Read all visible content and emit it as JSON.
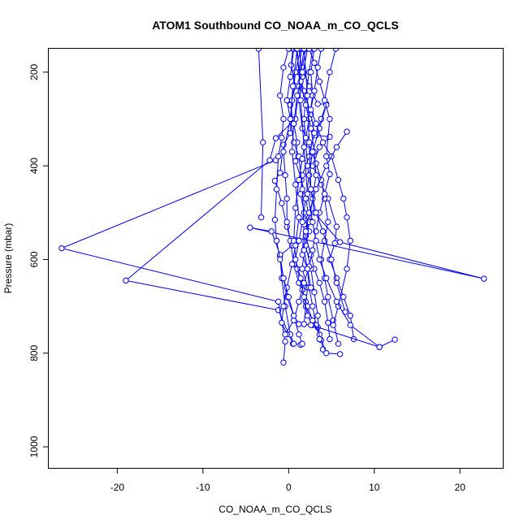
{
  "chart_data": {
    "type": "scatter",
    "title": "ATOM1 Southbound CO_NOAA_m_CO_QCLS",
    "xlabel": "CO_NOAA_m_CO_QCLS",
    "ylabel": "Pressure (mbar)",
    "xlim": [
      -28,
      25
    ],
    "ylim": [
      1045,
      150
    ],
    "y_reversed": true,
    "xticks": [
      -20,
      -10,
      0,
      10,
      20
    ],
    "yticks": [
      200,
      400,
      600,
      800,
      1000
    ],
    "grid": false,
    "legend": "none",
    "color": "#0000ff",
    "marker": "open-circle",
    "connected": true,
    "profiles": [
      [
        [
          0.5,
          150
        ],
        [
          0.3,
          185
        ],
        [
          0.8,
          230
        ],
        [
          0.2,
          270
        ],
        [
          0.6,
          310
        ],
        [
          1.0,
          350
        ],
        [
          0.8,
          390
        ],
        [
          1.5,
          430
        ],
        [
          2.0,
          470
        ],
        [
          2.4,
          510
        ],
        [
          2.0,
          550
        ],
        [
          2.6,
          590
        ],
        [
          3.0,
          620
        ],
        [
          3.6,
          650
        ],
        [
          4.2,
          690
        ],
        [
          4.6,
          735
        ],
        [
          4.8,
          770
        ]
      ],
      [
        [
          2.0,
          150
        ],
        [
          1.6,
          190
        ],
        [
          2.4,
          230
        ],
        [
          3.4,
          268
        ],
        [
          4.4,
          268
        ],
        [
          3.8,
          300
        ],
        [
          3.2,
          335
        ],
        [
          4.8,
          338
        ],
        [
          3.6,
          360
        ],
        [
          2.8,
          400
        ],
        [
          3.8,
          440
        ],
        [
          4.6,
          470
        ],
        [
          5.6,
          530
        ],
        [
          5.4,
          565
        ],
        [
          4.8,
          600
        ],
        [
          5.6,
          640
        ],
        [
          6.4,
          680
        ],
        [
          7.2,
          720
        ],
        [
          7.6,
          770
        ]
      ],
      [
        [
          1.5,
          150
        ],
        [
          1.2,
          200
        ],
        [
          1.8,
          240
        ],
        [
          2.6,
          290
        ],
        [
          3.0,
          330
        ],
        [
          2.4,
          380
        ],
        [
          1.6,
          420
        ],
        [
          1.4,
          460
        ],
        [
          1.8,
          500
        ],
        [
          2.4,
          540
        ],
        [
          1.8,
          580
        ],
        [
          1.6,
          620
        ],
        [
          2.2,
          660
        ],
        [
          2.0,
          700
        ],
        [
          1.8,
          738
        ],
        [
          2.8,
          740
        ],
        [
          3.4,
          745
        ],
        [
          3.8,
          772
        ],
        [
          4.0,
          792
        ]
      ],
      [
        [
          -3.5,
          150
        ],
        [
          -3.0,
          350
        ],
        [
          -3.2,
          510
        ]
      ],
      [
        [
          1.8,
          150
        ],
        [
          1.2,
          230
        ],
        [
          0.8,
          300
        ],
        [
          -1.5,
          341
        ],
        [
          -2.2,
          388
        ],
        [
          -19.0,
          645
        ],
        [
          -1.2,
          708
        ],
        [
          0.5,
          780
        ],
        [
          1.4,
          782
        ]
      ],
      [
        [
          1.4,
          150
        ],
        [
          0.8,
          200
        ],
        [
          0.4,
          260
        ],
        [
          0.2,
          330
        ],
        [
          -0.6,
          355
        ],
        [
          -1.0,
          415
        ],
        [
          -1.6,
          432
        ],
        [
          -0.8,
          480
        ],
        [
          -0.2,
          530
        ],
        [
          0.4,
          570
        ],
        [
          -1.0,
          592
        ],
        [
          -0.6,
          640
        ],
        [
          -0.2,
          680
        ],
        [
          0.6,
          720
        ],
        [
          1.2,
          760
        ],
        [
          1.6,
          780
        ]
      ],
      [
        [
          2.8,
          150
        ],
        [
          2.4,
          200
        ],
        [
          2.0,
          250
        ],
        [
          1.8,
          300
        ],
        [
          2.0,
          350
        ],
        [
          2.2,
          400
        ],
        [
          2.6,
          450
        ],
        [
          3.0,
          500
        ],
        [
          6.0,
          563
        ],
        [
          22.8,
          641
        ],
        [
          -4.5,
          532
        ],
        [
          -2.0,
          540
        ],
        [
          -1.0,
          590
        ],
        [
          -0.8,
          640
        ],
        [
          -0.4,
          700
        ],
        [
          0.2,
          760
        ],
        [
          0.6,
          780
        ]
      ],
      [
        [
          0.6,
          150
        ],
        [
          0.2,
          210
        ],
        [
          -0.2,
          260
        ],
        [
          0.2,
          300
        ],
        [
          0.6,
          350
        ],
        [
          1.2,
          380
        ],
        [
          1.6,
          450
        ],
        [
          1.8,
          525
        ],
        [
          1.6,
          590
        ],
        [
          2.2,
          620
        ],
        [
          2.4,
          660
        ],
        [
          2.8,
          700
        ],
        [
          3.2,
          740
        ],
        [
          4.4,
          800
        ],
        [
          6.0,
          802
        ]
      ],
      [
        [
          1.0,
          150
        ],
        [
          0.5,
          230
        ],
        [
          0.2,
          300
        ],
        [
          -0.6,
          370
        ],
        [
          -0.4,
          420
        ],
        [
          -0.2,
          470
        ],
        [
          -0.2,
          520
        ],
        [
          0.2,
          560
        ],
        [
          0.6,
          610
        ],
        [
          1.2,
          650
        ],
        [
          2.0,
          690
        ],
        [
          2.6,
          740
        ],
        [
          10.6,
          787
        ],
        [
          12.4,
          771
        ]
      ],
      [
        [
          -1.5,
          388
        ],
        [
          -26.5,
          576
        ],
        [
          -1.2,
          690
        ],
        [
          -0.4,
          775
        ],
        [
          -0.6,
          820
        ]
      ],
      [
        [
          2.2,
          150
        ],
        [
          1.6,
          210
        ],
        [
          1.2,
          260
        ],
        [
          1.6,
          320
        ],
        [
          2.4,
          355
        ],
        [
          3.2,
          395
        ],
        [
          3.8,
          430
        ],
        [
          4.2,
          470
        ],
        [
          4.6,
          520
        ],
        [
          4.2,
          560
        ],
        [
          3.8,
          600
        ],
        [
          4.2,
          640
        ],
        [
          4.6,
          680
        ],
        [
          5.2,
          730
        ],
        [
          5.8,
          780
        ]
      ],
      [
        [
          3.0,
          150
        ],
        [
          2.6,
          200
        ],
        [
          2.8,
          250
        ],
        [
          2.4,
          300
        ],
        [
          2.0,
          340
        ],
        [
          1.6,
          385
        ],
        [
          1.2,
          430
        ],
        [
          0.8,
          490
        ],
        [
          0.6,
          560
        ],
        [
          1.0,
          620
        ],
        [
          1.6,
          665
        ],
        [
          2.2,
          700
        ],
        [
          2.8,
          730
        ],
        [
          3.6,
          760
        ]
      ],
      [
        [
          1.2,
          150
        ],
        [
          1.6,
          200
        ],
        [
          1.0,
          250
        ],
        [
          0.6,
          310
        ],
        [
          0.4,
          370
        ],
        [
          0.8,
          440
        ],
        [
          1.2,
          510
        ],
        [
          0.8,
          570
        ],
        [
          0.4,
          610
        ],
        [
          -0.2,
          660
        ],
        [
          -0.6,
          700
        ],
        [
          -0.8,
          735
        ],
        [
          -0.2,
          760
        ]
      ],
      [
        [
          0.9,
          150
        ],
        [
          1.4,
          220
        ],
        [
          2.0,
          270
        ],
        [
          2.6,
          320
        ],
        [
          3.0,
          370
        ],
        [
          3.2,
          420
        ],
        [
          2.8,
          470
        ],
        [
          2.4,
          520
        ],
        [
          2.0,
          570
        ],
        [
          2.6,
          620
        ],
        [
          3.0,
          670
        ],
        [
          3.4,
          720
        ],
        [
          3.6,
          770
        ]
      ],
      [
        [
          2.4,
          150
        ],
        [
          3.0,
          180
        ],
        [
          3.6,
          220
        ],
        [
          4.4,
          270
        ],
        [
          3.6,
          320
        ],
        [
          2.8,
          370
        ],
        [
          2.4,
          420
        ],
        [
          2.0,
          470
        ],
        [
          1.6,
          520
        ],
        [
          1.2,
          560
        ],
        [
          0.8,
          600
        ],
        [
          1.4,
          640
        ],
        [
          1.8,
          680
        ],
        [
          2.2,
          720
        ]
      ],
      [
        [
          5.5,
          150
        ],
        [
          4.8,
          200
        ],
        [
          4.2,
          260
        ],
        [
          4.8,
          300
        ],
        [
          4.4,
          380
        ],
        [
          4.8,
          418
        ],
        [
          4.2,
          460
        ],
        [
          3.6,
          500
        ],
        [
          3.2,
          540
        ],
        [
          2.8,
          580
        ],
        [
          2.4,
          615
        ],
        [
          1.8,
          650
        ],
        [
          1.2,
          690
        ],
        [
          0.6,
          730
        ],
        [
          -0.4,
          760
        ]
      ],
      [
        [
          0.0,
          150
        ],
        [
          -0.6,
          190
        ],
        [
          -1.0,
          250
        ],
        [
          -0.6,
          300
        ],
        [
          -0.8,
          340
        ],
        [
          -1.2,
          380
        ],
        [
          -1.4,
          450
        ],
        [
          -1.6,
          515
        ],
        [
          -1.4,
          560
        ],
        [
          -1.0,
          600
        ],
        [
          -0.6,
          640
        ],
        [
          0.0,
          680
        ],
        [
          0.6,
          720
        ],
        [
          1.2,
          738
        ]
      ],
      [
        [
          3.8,
          150
        ],
        [
          3.4,
          190
        ],
        [
          3.0,
          240
        ],
        [
          2.6,
          280
        ],
        [
          3.2,
          310
        ],
        [
          4.0,
          350
        ],
        [
          5.0,
          380
        ],
        [
          5.8,
          430
        ],
        [
          6.4,
          470
        ],
        [
          6.8,
          510
        ],
        [
          7.2,
          560
        ],
        [
          6.8,
          620
        ],
        [
          5.8,
          700
        ],
        [
          5.2,
          740
        ]
      ],
      [
        [
          6.8,
          327
        ],
        [
          5.6,
          360
        ],
        [
          4.4,
          400
        ],
        [
          3.2,
          450
        ],
        [
          2.4,
          500
        ],
        [
          2.0,
          540
        ],
        [
          1.8,
          580
        ],
        [
          2.2,
          620
        ],
        [
          2.6,
          660
        ]
      ],
      [
        [
          1.8,
          150
        ],
        [
          2.2,
          250
        ],
        [
          2.4,
          350
        ],
        [
          2.6,
          450
        ],
        [
          3.2,
          500
        ],
        [
          4.0,
          540
        ],
        [
          5.0,
          600
        ],
        [
          5.6,
          650
        ],
        [
          6.6,
          712
        ]
      ],
      [
        [
          1.0,
          150
        ],
        [
          1.4,
          260
        ],
        [
          1.8,
          360
        ],
        [
          2.2,
          460
        ],
        [
          2.8,
          520
        ],
        [
          3.2,
          560
        ],
        [
          3.6,
          600
        ],
        [
          4.4,
          640
        ],
        [
          5.6,
          690
        ],
        [
          7.2,
          740
        ],
        [
          10.6,
          787
        ]
      ]
    ]
  }
}
